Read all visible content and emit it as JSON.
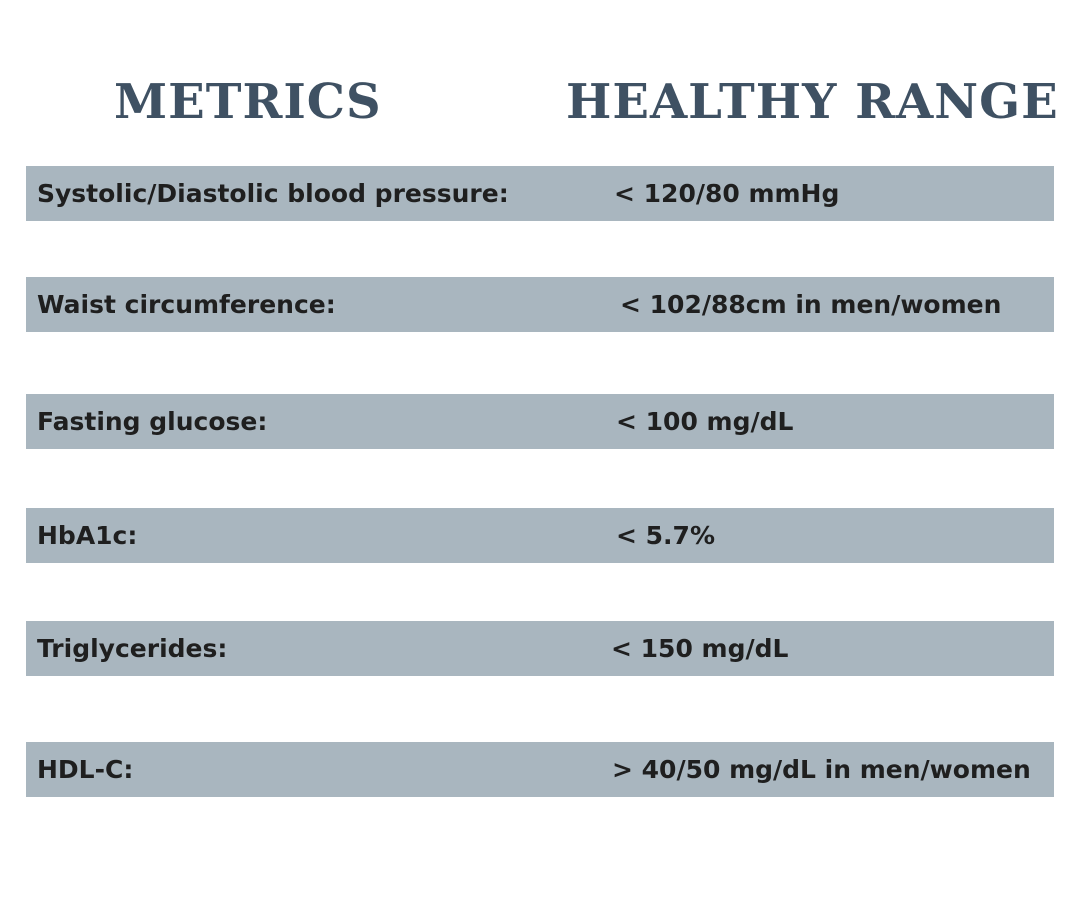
{
  "headers": {
    "metrics": "METRICS",
    "range": "HEALTHY RANGE"
  },
  "rows": [
    {
      "metric": "Systolic/Diastolic blood pressure:",
      "range": "< 120/80 mmHg"
    },
    {
      "metric": "Waist circumference:",
      "range": "< 102/88cm in men/women"
    },
    {
      "metric": "Fasting glucose:",
      "range": "< 100 mg/dL"
    },
    {
      "metric": "HbA1c:",
      "range": "< 5.7%"
    },
    {
      "metric": "Triglycerides:",
      "range": "< 150 mg/dL"
    },
    {
      "metric": "HDL-C:",
      "range": "> 40/50 mg/dL in men/women"
    }
  ],
  "colors": {
    "header_text": "#3f5163",
    "row_background": "#a9b6bf",
    "row_text": "#1f1f1f"
  }
}
